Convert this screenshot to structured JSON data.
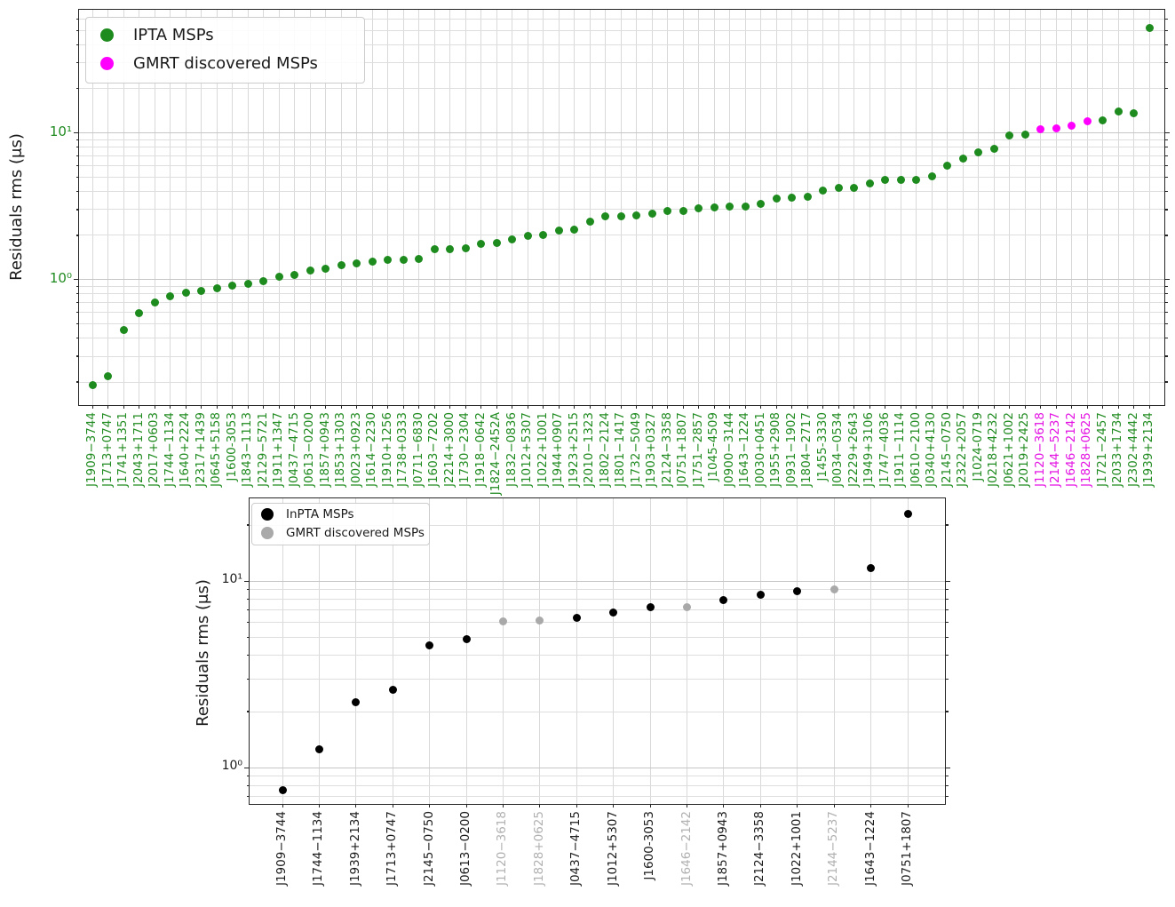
{
  "chart_data": [
    {
      "type": "scatter",
      "title": "",
      "xlabel": "",
      "ylabel": "Residuals rms (μs)",
      "yscale": "log",
      "ylim": [
        0.14,
        69
      ],
      "grid": "both",
      "x_tick_rotation": 90,
      "legend_position": "upper left",
      "ytick_labels": [
        "10¹",
        "10⁰"
      ],
      "ytick_values": [
        10,
        1
      ],
      "legend": [
        {
          "label": "IPTA MSPs",
          "color": "#1e8b1e"
        },
        {
          "label": "GMRT discovered MSPs",
          "color": "#ff00ff"
        }
      ],
      "tick_label_color": "#208b20",
      "gmrt_tick_label_color": "#e312e3",
      "points": [
        {
          "name": "J1909−3744",
          "rms": 0.19
        },
        {
          "name": "J1713+0747",
          "rms": 0.22
        },
        {
          "name": "J1741+1351",
          "rms": 0.45
        },
        {
          "name": "J2043+1711",
          "rms": 0.59
        },
        {
          "name": "J2017+0603",
          "rms": 0.7
        },
        {
          "name": "J1744−1134",
          "rms": 0.77
        },
        {
          "name": "J1640+2224",
          "rms": 0.81
        },
        {
          "name": "J2317+1439",
          "rms": 0.84
        },
        {
          "name": "J0645+5158",
          "rms": 0.87
        },
        {
          "name": "J1600-3053",
          "rms": 0.91
        },
        {
          "name": "J1843−1113",
          "rms": 0.93
        },
        {
          "name": "J2129−5721",
          "rms": 0.98
        },
        {
          "name": "J1911+1347",
          "rms": 1.05
        },
        {
          "name": "J0437−4715",
          "rms": 1.07
        },
        {
          "name": "J0613−0200",
          "rms": 1.16
        },
        {
          "name": "J1857+0943",
          "rms": 1.19
        },
        {
          "name": "J1853+1303",
          "rms": 1.26
        },
        {
          "name": "J0023+0923",
          "rms": 1.28
        },
        {
          "name": "J1614−2230",
          "rms": 1.32
        },
        {
          "name": "J1910+1256",
          "rms": 1.36
        },
        {
          "name": "J1738+0333",
          "rms": 1.37
        },
        {
          "name": "J0711−6830",
          "rms": 1.38
        },
        {
          "name": "J1603−7202",
          "rms": 1.6
        },
        {
          "name": "J2214+3000",
          "rms": 1.62
        },
        {
          "name": "J1730−2304",
          "rms": 1.63
        },
        {
          "name": "J1918−0642",
          "rms": 1.75
        },
        {
          "name": "J1824−2452A",
          "rms": 1.77
        },
        {
          "name": "J1832−0836",
          "rms": 1.88
        },
        {
          "name": "J1012+5307",
          "rms": 1.98
        },
        {
          "name": "J1022+1001",
          "rms": 2.01
        },
        {
          "name": "J1944+0907",
          "rms": 2.17
        },
        {
          "name": "J1923+2515",
          "rms": 2.19
        },
        {
          "name": "J2010−1323",
          "rms": 2.48
        },
        {
          "name": "J1802−2124",
          "rms": 2.7
        },
        {
          "name": "J1801−1417",
          "rms": 2.71
        },
        {
          "name": "J1732−5049",
          "rms": 2.72
        },
        {
          "name": "J1903+0327",
          "rms": 2.8
        },
        {
          "name": "J2124−3358",
          "rms": 2.93
        },
        {
          "name": "J0751+1807",
          "rms": 2.95
        },
        {
          "name": "J1751−2857",
          "rms": 3.08
        },
        {
          "name": "J1045-4509",
          "rms": 3.1
        },
        {
          "name": "J0900−3144",
          "rms": 3.13
        },
        {
          "name": "J1643−1224",
          "rms": 3.15
        },
        {
          "name": "J0030+0451",
          "rms": 3.28
        },
        {
          "name": "J1955+2908",
          "rms": 3.58
        },
        {
          "name": "J0931−1902",
          "rms": 3.64
        },
        {
          "name": "J1804−2717",
          "rms": 3.66
        },
        {
          "name": "J1455-3330",
          "rms": 4.04
        },
        {
          "name": "J0034−0534",
          "rms": 4.2
        },
        {
          "name": "J2229+2643",
          "rms": 4.23
        },
        {
          "name": "J1949+3106",
          "rms": 4.52
        },
        {
          "name": "J1747−4036",
          "rms": 4.75
        },
        {
          "name": "J1911−1114",
          "rms": 4.76
        },
        {
          "name": "J0610−2100",
          "rms": 4.8
        },
        {
          "name": "J0340+4130",
          "rms": 5.08
        },
        {
          "name": "J2145−0750",
          "rms": 5.98
        },
        {
          "name": "J2322+2057",
          "rms": 6.69
        },
        {
          "name": "J1024-0719",
          "rms": 7.35
        },
        {
          "name": "J0218+4232",
          "rms": 7.81
        },
        {
          "name": "J0621+1002",
          "rms": 9.6
        },
        {
          "name": "J2019+2425",
          "rms": 9.73
        },
        {
          "name": "J1120−3618",
          "rms": 10.6,
          "gmrt": true
        },
        {
          "name": "J2144−5237",
          "rms": 10.8,
          "gmrt": true
        },
        {
          "name": "J1646−2142",
          "rms": 11.2,
          "gmrt": true
        },
        {
          "name": "J1828+0625",
          "rms": 12.0,
          "gmrt": true
        },
        {
          "name": "J1721−2457",
          "rms": 12.2
        },
        {
          "name": "J2033+1734",
          "rms": 13.9
        },
        {
          "name": "J2302+4442",
          "rms": 13.7
        },
        {
          "name": "J1939+2134",
          "rms": 52.0
        }
      ]
    },
    {
      "type": "scatter",
      "title": "",
      "xlabel": "",
      "ylabel": "Residuals rms (μs)",
      "yscale": "log",
      "ylim": [
        0.64,
        28
      ],
      "grid": "both",
      "x_tick_rotation": 90,
      "legend_position": "upper left",
      "ytick_labels": [
        "10¹",
        "10⁰"
      ],
      "ytick_values": [
        10,
        1
      ],
      "legend": [
        {
          "label": "InPTA MSPs",
          "color": "#000000"
        },
        {
          "label": "GMRT discovered MSPs",
          "color": "#a9a9a9"
        }
      ],
      "tick_label_color": "#1a1a1a",
      "gmrt_tick_label_color": "#b0b0b0",
      "points": [
        {
          "name": "J1909−3744",
          "rms": 0.76
        },
        {
          "name": "J1744−1134",
          "rms": 1.25
        },
        {
          "name": "J1939+2134",
          "rms": 2.25
        },
        {
          "name": "J1713+0747",
          "rms": 2.62
        },
        {
          "name": "J2145−0750",
          "rms": 4.55
        },
        {
          "name": "J0613−0200",
          "rms": 4.9
        },
        {
          "name": "J1120−3618",
          "rms": 6.1,
          "gmrt": true
        },
        {
          "name": "J1828+0625",
          "rms": 6.15,
          "gmrt": true
        },
        {
          "name": "J0437−4715",
          "rms": 6.4
        },
        {
          "name": "J1012+5307",
          "rms": 6.8
        },
        {
          "name": "J1600-3053",
          "rms": 7.3
        },
        {
          "name": "J1646−2142",
          "rms": 7.3,
          "gmrt": true
        },
        {
          "name": "J1857+0943",
          "rms": 7.9
        },
        {
          "name": "J2124−3358",
          "rms": 8.45
        },
        {
          "name": "J1022+1001",
          "rms": 8.8
        },
        {
          "name": "J2144−5237",
          "rms": 9.0,
          "gmrt": true
        },
        {
          "name": "J1643−1224",
          "rms": 11.7
        },
        {
          "name": "J0751+1807",
          "rms": 23.0
        }
      ]
    }
  ]
}
